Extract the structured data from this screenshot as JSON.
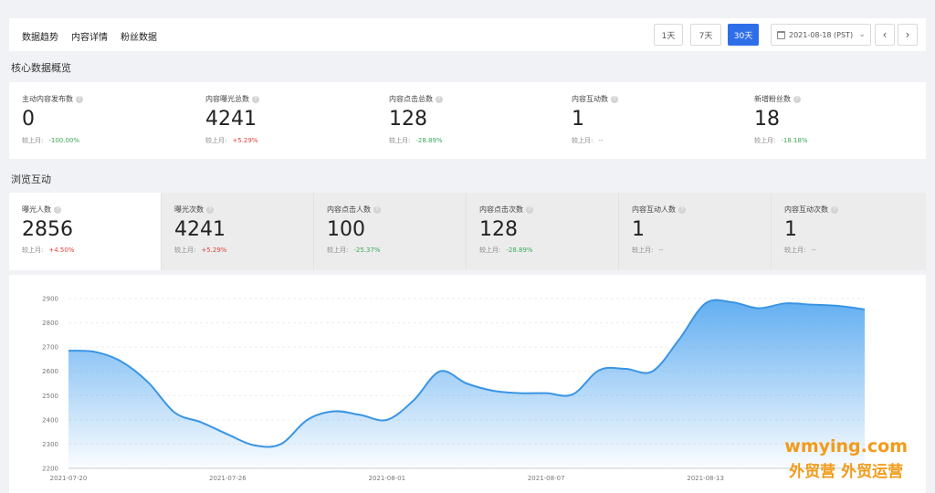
{
  "tabs": [
    "数据趋势",
    "内容详情",
    "粉丝数据"
  ],
  "range_buttons": {
    "d1": "1天",
    "d7": "7天",
    "d30": "30天",
    "active": "30天"
  },
  "date_picker": {
    "value": "2021-08-18 (PST)",
    "icon": "calendar-icon"
  },
  "nav": {
    "prev": "‹",
    "next": "›"
  },
  "core_section": {
    "title": "核心数据概览",
    "metrics": [
      {
        "label": "主动内容发布数",
        "value": "0",
        "compare_label": "较上月:",
        "change": "-100.00%",
        "trend": "down"
      },
      {
        "label": "内容曝光总数",
        "value": "4241",
        "compare_label": "较上月:",
        "change": "+5.29%",
        "trend": "up"
      },
      {
        "label": "内容点击总数",
        "value": "128",
        "compare_label": "较上月:",
        "change": "-28.89%",
        "trend": "down"
      },
      {
        "label": "内容互动数",
        "value": "1",
        "compare_label": "较上月:",
        "change": "--",
        "trend": "flat"
      },
      {
        "label": "新增粉丝数",
        "value": "18",
        "compare_label": "较上月:",
        "change": "-18.18%",
        "trend": "down"
      }
    ]
  },
  "browse_section": {
    "title": "浏览互动",
    "metrics": [
      {
        "label": "曝光人数",
        "value": "2856",
        "compare_label": "较上月:",
        "change": "+4.50%",
        "trend": "up"
      },
      {
        "label": "曝光次数",
        "value": "4241",
        "compare_label": "较上月:",
        "change": "+5.29%",
        "trend": "up"
      },
      {
        "label": "内容点击人数",
        "value": "100",
        "compare_label": "较上月:",
        "change": "-25.37%",
        "trend": "down"
      },
      {
        "label": "内容点击次数",
        "value": "128",
        "compare_label": "较上月:",
        "change": "-28.89%",
        "trend": "down"
      },
      {
        "label": "内容互动人数",
        "value": "1",
        "compare_label": "较上月:",
        "change": "--",
        "trend": "flat"
      },
      {
        "label": "内容互动次数",
        "value": "1",
        "compare_label": "较上月:",
        "change": "--",
        "trend": "flat"
      }
    ]
  },
  "chart_data": {
    "type": "area",
    "ylim": [
      2200,
      2900
    ],
    "yticks": [
      2200,
      2300,
      2400,
      2500,
      2600,
      2700,
      2800,
      2900
    ],
    "x_start": "2021-07-20",
    "xtick_labels": [
      "2021-07-20",
      "2021-07-26",
      "2021-08-01",
      "2021-08-07",
      "2021-08-13"
    ],
    "series": [
      {
        "values": [
          2685,
          2680,
          2640,
          2555,
          2430,
          2390,
          2340,
          2295,
          2300,
          2400,
          2435,
          2420,
          2400,
          2480,
          2600,
          2550,
          2520,
          2510,
          2510,
          2505,
          2605,
          2610,
          2600,
          2730,
          2880,
          2885,
          2860,
          2880,
          2875,
          2870,
          2855
        ]
      }
    ],
    "line_color": "#3a95e4",
    "fill_color": "#5aaaf0"
  },
  "watermark": {
    "line1": "wmying.com",
    "line2": "外贸营 外贸运营"
  }
}
